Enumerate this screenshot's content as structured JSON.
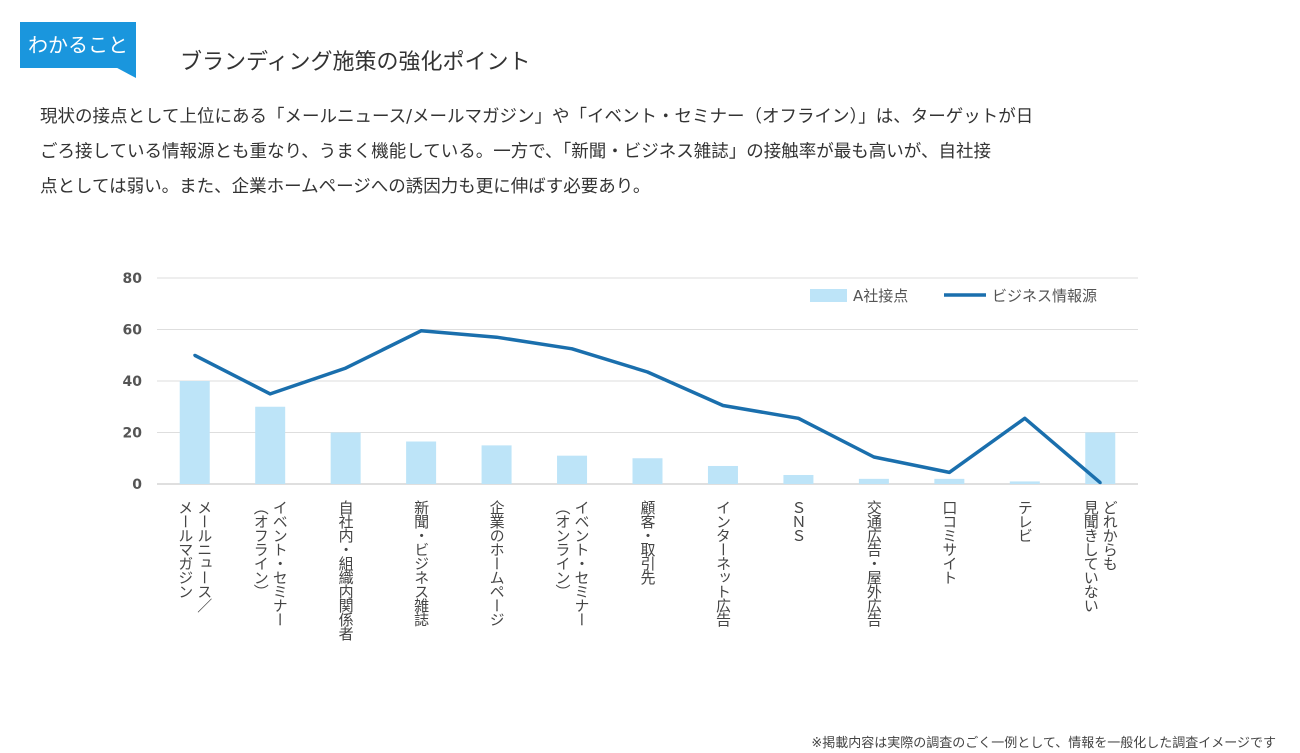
{
  "header": {
    "badge_label": "わかること",
    "title": "ブランディング施策の強化ポイント"
  },
  "description": [
    "現状の接点として上位にある「メールニュース/メールマガジン」や「イベント・セミナー（オフライン）」は、ターゲットが日",
    "ごろ接している情報源とも重なり、うまく機能している。一方で、「新聞・ビジネス雑誌」の接触率が最も高いが、自社接",
    "点としては弱い。また、企業ホームページへの誘因力も更に伸ばす必要あり。"
  ],
  "footnote": "※掲載内容は実際の調査のごく一例として、情報を一般化した調査イメージです",
  "chart_data": {
    "type": "bar",
    "categories": [
      [
        "メールニュース／",
        "メールマガジン"
      ],
      [
        "イベント・セミナー",
        "（オフライン）"
      ],
      [
        "自社内・組織内関係者"
      ],
      [
        "新聞・ビジネス雑誌"
      ],
      [
        "企業のホームページ"
      ],
      [
        "イベント・セミナー",
        "（オンライン）"
      ],
      [
        "顧客・取引先"
      ],
      [
        "インターネット広告"
      ],
      [
        "ＳＮＳ"
      ],
      [
        "交通広告・屋外広告"
      ],
      [
        "口コミサイト"
      ],
      [
        "テレビ"
      ],
      [
        "どれからも",
        "見聞きしていない"
      ]
    ],
    "series": [
      {
        "name": "A社接点",
        "kind": "bar",
        "color": "#bde4f8",
        "values": [
          40,
          30,
          20,
          16.5,
          15,
          11,
          10,
          7,
          3.5,
          2,
          2,
          1,
          20
        ]
      },
      {
        "name": "ビジネス情報源",
        "kind": "line",
        "color": "#1a6fad",
        "values": [
          50,
          35,
          45,
          59.5,
          57,
          52.5,
          43.5,
          30.5,
          25.5,
          10.5,
          4.5,
          25.5,
          0.5
        ]
      }
    ],
    "yticks": [
      0,
      20,
      40,
      60,
      80
    ],
    "ylim": [
      0,
      80
    ],
    "grid": true,
    "legend": "top-right"
  }
}
